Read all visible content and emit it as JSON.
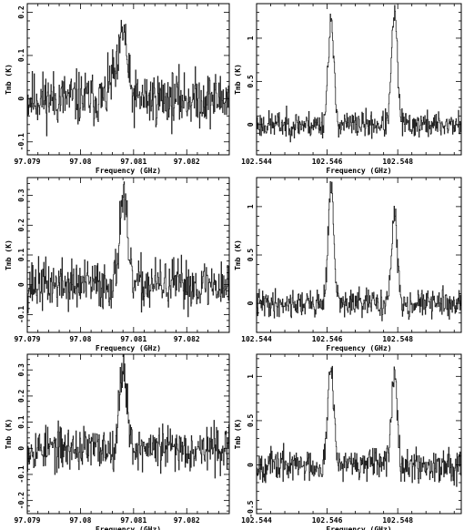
{
  "chart_data": [
    {
      "type": "line",
      "xlabel": "Frequency (GHz)",
      "ylabel": "Tmb (K)",
      "xlim": [
        97.079,
        97.0828
      ],
      "ylim": [
        -0.13,
        0.22
      ],
      "xticks": [
        97.079,
        97.08,
        97.081,
        97.082
      ],
      "xtick_labels": [
        "97.079",
        "97.08",
        "97.081",
        "97.082"
      ],
      "yticks": [
        -0.1,
        0,
        0.1,
        0.2
      ],
      "ytick_labels": [
        "-0.1",
        "0",
        "0.1",
        "0.2"
      ],
      "series": [
        {
          "noise": 0.045,
          "seed": 11,
          "peaks": [
            {
              "x": 97.0808,
              "amp": 0.16,
              "width": 7e-05
            },
            {
              "x": 97.0806,
              "amp": 0.05,
              "width": 6e-05
            }
          ]
        }
      ]
    },
    {
      "type": "line",
      "xlabel": "Frequency (GHz)",
      "ylabel": "Tmb (K)",
      "xlim": [
        102.544,
        102.5498
      ],
      "ylim": [
        -0.35,
        1.4
      ],
      "xticks": [
        102.544,
        102.546,
        102.548
      ],
      "xtick_labels": [
        "102.544",
        "102.546",
        "102.548"
      ],
      "yticks": [
        0,
        0.5,
        1
      ],
      "ytick_labels": [
        "0",
        "0.5",
        "1"
      ],
      "series": [
        {
          "noise": 0.11,
          "seed": 23,
          "peaks": [
            {
              "x": 102.5461,
              "amp": 1.2,
              "width": 8e-05
            },
            {
              "x": 102.5479,
              "amp": 1.3,
              "width": 8e-05
            }
          ]
        }
      ]
    },
    {
      "type": "line",
      "xlabel": "Frequency (GHz)",
      "ylabel": "Tmb (K)",
      "xlim": [
        97.079,
        97.0828
      ],
      "ylim": [
        -0.16,
        0.36
      ],
      "xticks": [
        97.079,
        97.08,
        97.081,
        97.082
      ],
      "xtick_labels": [
        "97.079",
        "97.08",
        "97.081",
        "97.082"
      ],
      "yticks": [
        -0.1,
        0,
        0.1,
        0.2,
        0.3
      ],
      "ytick_labels": [
        "-0.1",
        "0",
        "0.1",
        "0.2",
        "0.3"
      ],
      "series": [
        {
          "noise": 0.06,
          "seed": 37,
          "peaks": [
            {
              "x": 97.0808,
              "amp": 0.3,
              "width": 7e-05
            }
          ]
        }
      ]
    },
    {
      "type": "line",
      "xlabel": "Frequency (GHz)",
      "ylabel": "Tmb (K)",
      "xlim": [
        102.544,
        102.5498
      ],
      "ylim": [
        -0.3,
        1.3
      ],
      "xticks": [
        102.544,
        102.546,
        102.548
      ],
      "xtick_labels": [
        "102.544",
        "102.546",
        "102.548"
      ],
      "yticks": [
        0,
        0.5,
        1
      ],
      "ytick_labels": [
        "0",
        "0.5",
        "1"
      ],
      "series": [
        {
          "noise": 0.1,
          "seed": 41,
          "peaks": [
            {
              "x": 102.5461,
              "amp": 1.2,
              "width": 8e-05
            },
            {
              "x": 102.5479,
              "amp": 0.9,
              "width": 8e-05
            }
          ]
        }
      ]
    },
    {
      "type": "line",
      "xlabel": "Frequency (GHz)",
      "ylabel": "Tmb (K)",
      "xlim": [
        97.079,
        97.0828
      ],
      "ylim": [
        -0.25,
        0.36
      ],
      "xticks": [
        97.079,
        97.08,
        97.081,
        97.082
      ],
      "xtick_labels": [
        "97.079",
        "97.08",
        "97.081",
        "97.082"
      ],
      "yticks": [
        -0.2,
        -0.1,
        0,
        0.1,
        0.2,
        0.3
      ],
      "ytick_labels": [
        "-0.2",
        "-0.1",
        "0",
        "0.1",
        "0.2",
        "0.3"
      ],
      "series": [
        {
          "noise": 0.06,
          "seed": 53,
          "peaks": [
            {
              "x": 97.0808,
              "amp": 0.32,
              "width": 7e-05
            }
          ]
        }
      ]
    },
    {
      "type": "line",
      "xlabel": "Frequency (GHz)",
      "ylabel": "Tmb (K)",
      "xlim": [
        102.544,
        102.5498
      ],
      "ylim": [
        -0.55,
        1.25
      ],
      "xticks": [
        102.544,
        102.546,
        102.548
      ],
      "xtick_labels": [
        "102.544",
        "102.546",
        "102.548"
      ],
      "yticks": [
        -0.5,
        0,
        0.5,
        1
      ],
      "ytick_labels": [
        "-0.5",
        "0",
        "0.5",
        "1"
      ],
      "series": [
        {
          "noise": 0.13,
          "seed": 67,
          "peaks": [
            {
              "x": 102.5461,
              "amp": 1.2,
              "width": 8e-05
            },
            {
              "x": 102.5479,
              "amp": 1.1,
              "width": 8e-05
            }
          ]
        }
      ]
    }
  ]
}
